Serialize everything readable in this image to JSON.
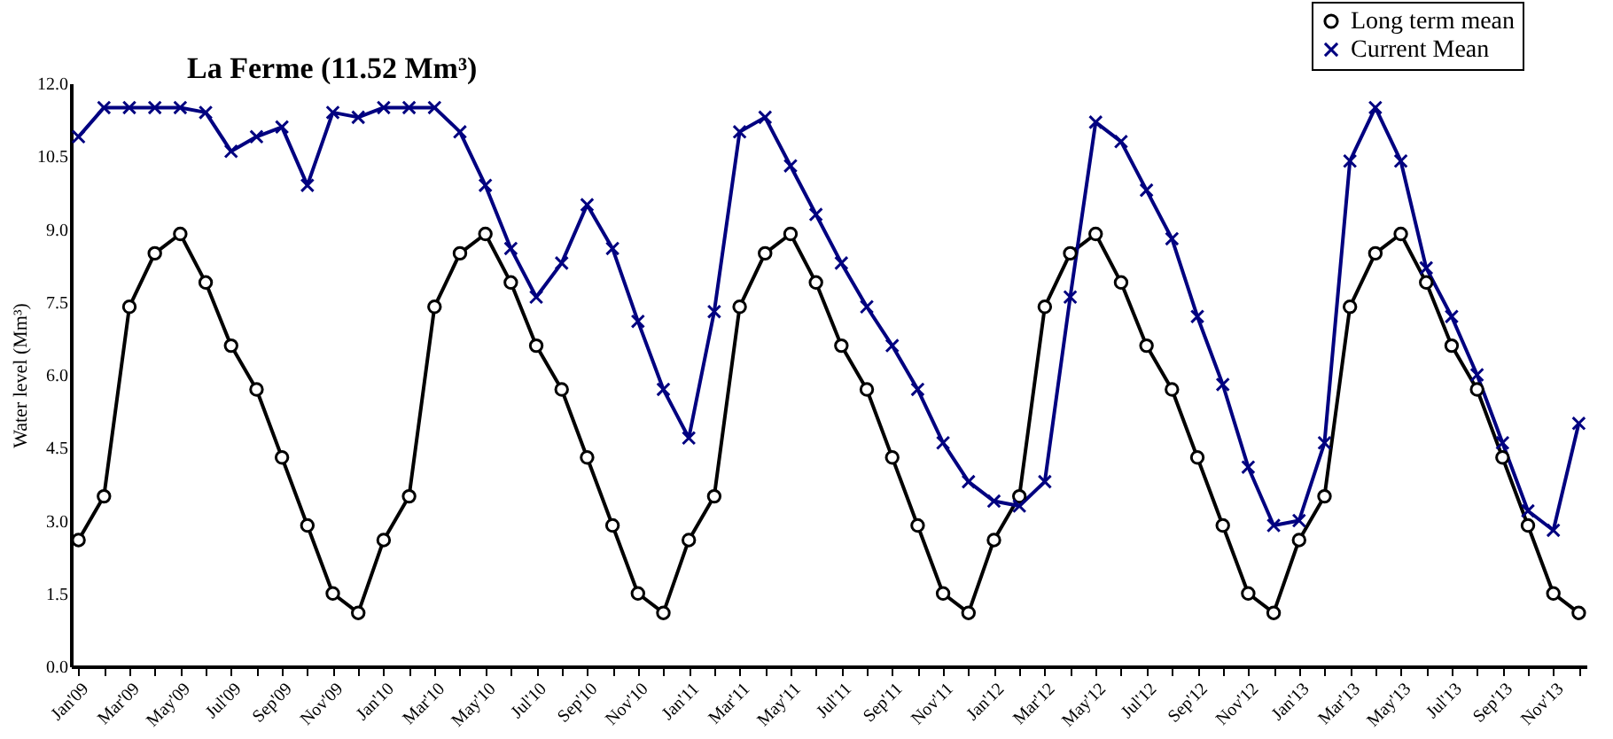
{
  "chart_data": {
    "type": "line",
    "title": "La Ferme (11.52 Mm³)",
    "ylabel": "Water level (Mm³)",
    "categories": [
      "Jan'09",
      null,
      "Mar'09",
      null,
      "May'09",
      null,
      "Jul'09",
      null,
      "Sep'09",
      null,
      "Nov'09",
      null,
      "Jan'10",
      null,
      "Mar'10",
      null,
      "May'10",
      null,
      "Jul'10",
      null,
      "Sep'10",
      null,
      "Nov'10",
      null,
      "Jan'11",
      null,
      "Mar'11",
      null,
      "May'11",
      null,
      "Jul'11",
      null,
      "Sep'11",
      null,
      "Nov'11",
      null,
      "Jan'12",
      null,
      "Mar'12",
      null,
      "May'12",
      null,
      "Jul'12",
      null,
      "Sep'12",
      null,
      "Nov'12",
      null,
      "Jan'13",
      null,
      "Mar'13",
      null,
      "May'13",
      null,
      "Jul'13",
      null,
      "Sep'13",
      null,
      "Nov'13",
      null
    ],
    "series": [
      {
        "name": "Long term mean",
        "color": "#000000",
        "marker": "circle",
        "values": [
          2.6,
          3.5,
          7.4,
          8.5,
          8.9,
          7.9,
          6.6,
          5.7,
          4.3,
          2.9,
          1.5,
          1.1,
          2.6,
          3.5,
          7.4,
          8.5,
          8.9,
          7.9,
          6.6,
          5.7,
          4.3,
          2.9,
          1.5,
          1.1,
          2.6,
          3.5,
          7.4,
          8.5,
          8.9,
          7.9,
          6.6,
          5.7,
          4.3,
          2.9,
          1.5,
          1.1,
          2.6,
          3.5,
          7.4,
          8.5,
          8.9,
          7.9,
          6.6,
          5.7,
          4.3,
          2.9,
          1.5,
          1.1,
          2.6,
          3.5,
          7.4,
          8.5,
          8.9,
          7.9,
          6.6,
          5.7,
          4.3,
          2.9,
          1.5,
          1.1
        ]
      },
      {
        "name": "Current Mean",
        "color": "#000080",
        "marker": "cross",
        "values": [
          10.9,
          11.5,
          11.5,
          11.5,
          11.5,
          11.4,
          10.6,
          10.9,
          11.1,
          9.9,
          11.4,
          11.3,
          11.5,
          11.5,
          11.5,
          11.0,
          9.9,
          8.6,
          7.6,
          8.3,
          9.5,
          8.6,
          7.1,
          5.7,
          4.7,
          7.3,
          11.0,
          11.3,
          10.3,
          9.3,
          8.3,
          7.4,
          6.6,
          5.7,
          4.6,
          3.8,
          3.4,
          3.3,
          3.8,
          7.6,
          11.2,
          10.8,
          9.8,
          8.8,
          7.2,
          5.8,
          4.1,
          2.9,
          3.0,
          4.6,
          10.4,
          11.5,
          10.4,
          8.2,
          7.2,
          6.0,
          4.6,
          3.2,
          2.8,
          5.0
        ]
      }
    ],
    "ylim": [
      0,
      12
    ],
    "yticks": [
      {
        "value": 0,
        "label": "0.0"
      },
      {
        "value": 1.5,
        "label": "1.5"
      },
      {
        "value": 3,
        "label": "3.0"
      },
      {
        "value": 4.5,
        "label": "4.5"
      },
      {
        "value": 6,
        "label": "6.0"
      },
      {
        "value": 7.5,
        "label": "7.5"
      },
      {
        "value": 9,
        "label": "9.0"
      },
      {
        "value": 10.5,
        "label": "10.5"
      },
      {
        "value": 12,
        "label": "12.0"
      }
    ],
    "grid": false,
    "legend": "top right",
    "line_style": "solid"
  }
}
